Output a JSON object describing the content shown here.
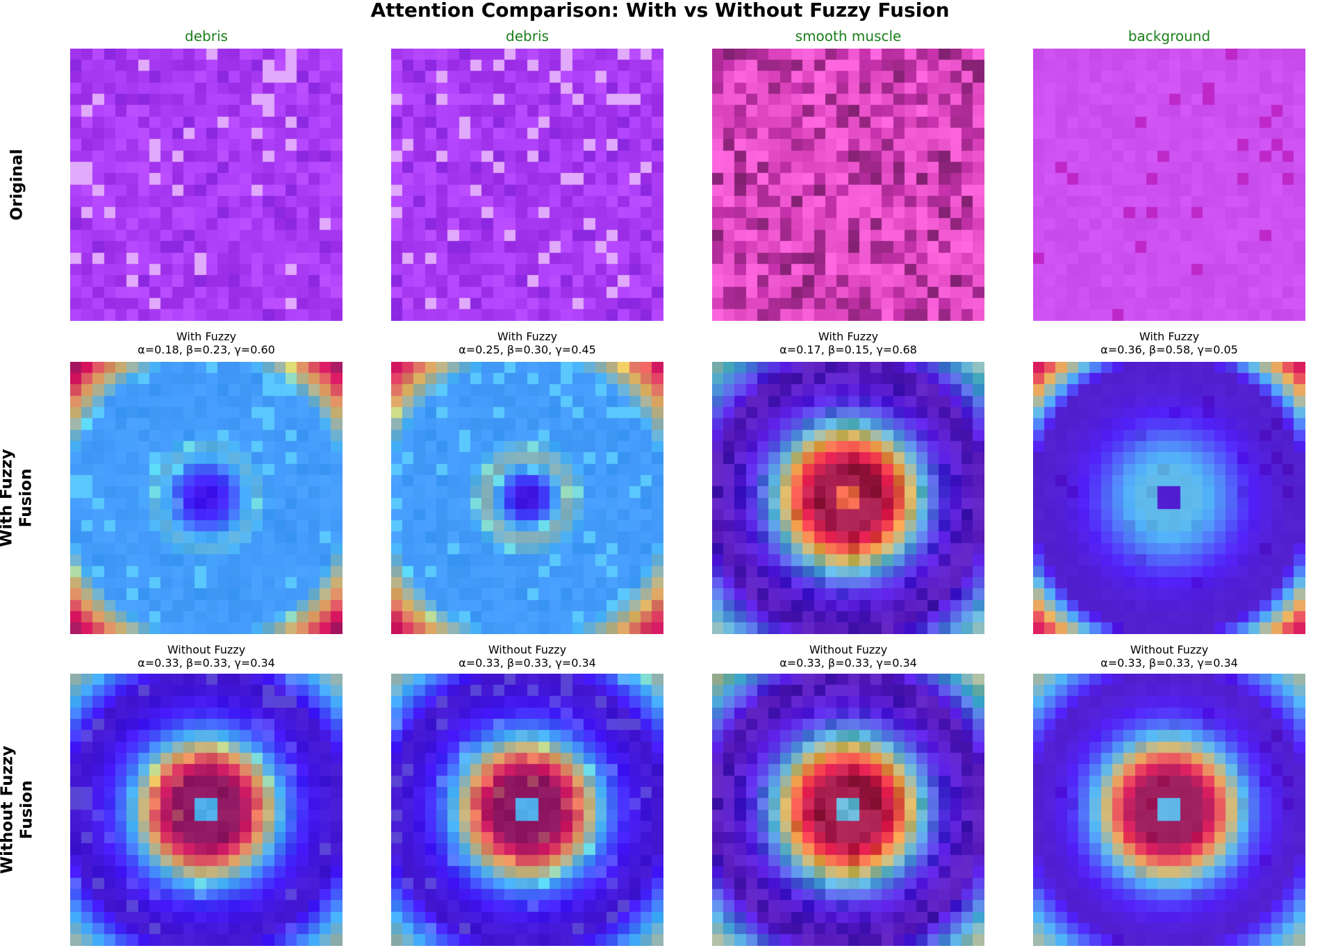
{
  "title": "Attention Comparison: With vs Without Fuzzy Fusion",
  "label_color": "#1a7f1a",
  "columns": [
    {
      "label": "debris",
      "seed": 11,
      "tissue": "debris"
    },
    {
      "label": "debris",
      "seed": 23,
      "tissue": "debris"
    },
    {
      "label": "smooth muscle",
      "seed": 37,
      "tissue": "muscle"
    },
    {
      "label": "background",
      "seed": 53,
      "tissue": "background"
    }
  ],
  "rows": [
    {
      "label_lines": [
        "Original"
      ]
    },
    {
      "label_lines": [
        "With Fuzzy",
        "Fusion"
      ]
    },
    {
      "label_lines": [
        "Without Fuzzy",
        "Fusion"
      ]
    }
  ],
  "with_fuzzy": {
    "heading": "With Fuzzy",
    "panels": [
      {
        "params": "α=0.18, β=0.23, γ=0.60"
      },
      {
        "params": "α=0.25, β=0.30, γ=0.45"
      },
      {
        "params": "α=0.17, β=0.15, γ=0.68"
      },
      {
        "params": "α=0.36, β=0.58, γ=0.05"
      }
    ]
  },
  "without_fuzzy": {
    "heading": "Without Fuzzy",
    "panels": [
      {
        "params": "α=0.33, β=0.33, γ=0.34"
      },
      {
        "params": "α=0.33, β=0.33, γ=0.34"
      },
      {
        "params": "α=0.33, β=0.33, γ=0.34"
      },
      {
        "params": "α=0.33, β=0.33, γ=0.34"
      }
    ]
  },
  "chart_data": {
    "type": "heatmap",
    "title": "Attention Comparison: With vs Without Fuzzy Fusion",
    "grid_size": 24,
    "colormap": "jet",
    "overlay_alpha": 0.6,
    "attention_profiles": {
      "with_fuzzy": [
        {
          "class": "debris",
          "center": 0.1,
          "ring_r": 0.36,
          "ring": 0.42,
          "corner": 0.62
        },
        {
          "class": "debris",
          "center": 0.05,
          "ring_r": 0.3,
          "ring": 0.48,
          "corner": 0.55
        },
        {
          "class": "smooth muscle",
          "center": 0.75,
          "ring_r": 0.0,
          "ring": 1.0,
          "corner": 0.4
        },
        {
          "class": "background",
          "center": 0.06,
          "ring_r": 0.0,
          "ring": 0.35,
          "corner": 0.85
        }
      ],
      "without_fuzzy": [
        {
          "class": "debris",
          "center": 0.4,
          "ring_r": 0.0,
          "ring": 1.0,
          "corner": 0.45
        },
        {
          "class": "debris",
          "center": 0.4,
          "ring_r": 0.0,
          "ring": 1.0,
          "corner": 0.45
        },
        {
          "class": "smooth muscle",
          "center": 0.4,
          "ring_r": 0.0,
          "ring": 1.0,
          "corner": 0.45
        },
        {
          "class": "background",
          "center": 0.4,
          "ring_r": 0.0,
          "ring": 1.0,
          "corner": 0.45
        }
      ]
    }
  }
}
